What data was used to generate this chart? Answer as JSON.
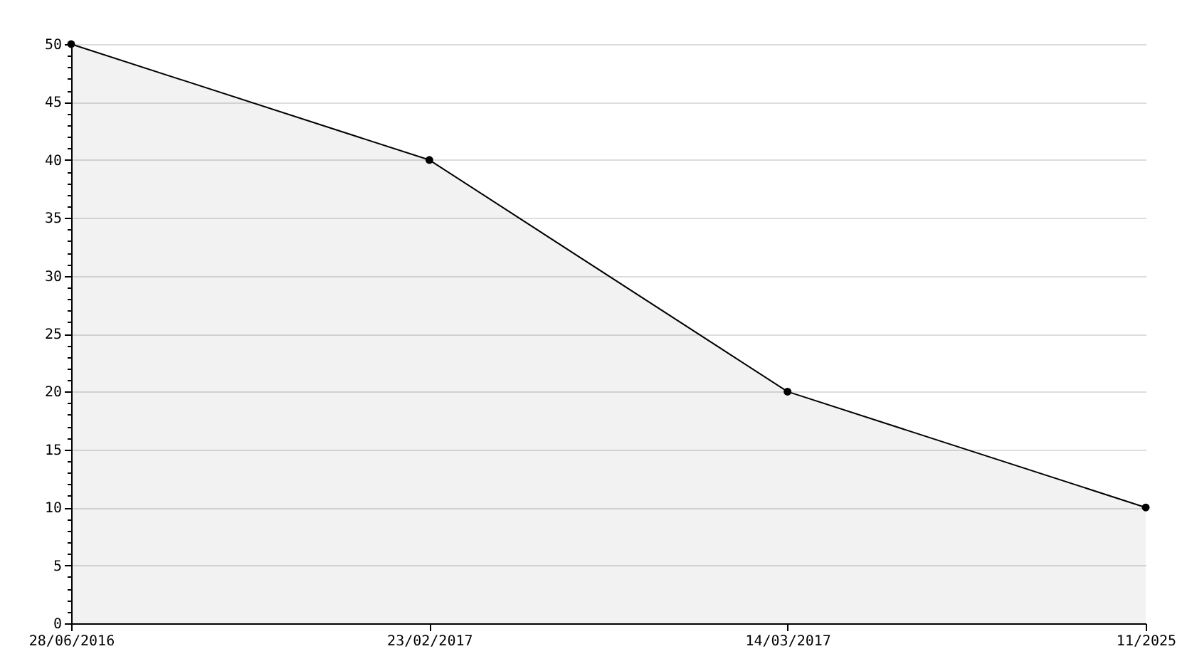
{
  "chart_data": {
    "type": "area",
    "categories": [
      "28/06/2016",
      "23/02/2017",
      "14/03/2017",
      "11/2025"
    ],
    "series": [
      {
        "color": "#000000",
        "values": [
          50,
          40,
          20,
          10
        ]
      }
    ],
    "ylim": [
      0,
      50
    ],
    "yticks": [
      0,
      {
        "value": 1,
        "label": null
      },
      {
        "value": 2,
        "label": null
      },
      {
        "value": 3,
        "label": null
      },
      {
        "value": 4,
        "label": null
      },
      5,
      {
        "value": 6,
        "label": null
      },
      {
        "value": 7,
        "label": null
      },
      {
        "value": 8,
        "label": null
      },
      {
        "value": 9,
        "label": null
      },
      10,
      {
        "value": 11,
        "label": null
      },
      {
        "value": 12,
        "label": null
      },
      {
        "value": 13,
        "label": null
      },
      {
        "value": 14,
        "label": null
      },
      15,
      {
        "value": 16,
        "label": null
      },
      {
        "value": 17,
        "label": null
      },
      {
        "value": 18,
        "label": null
      },
      {
        "value": 19,
        "label": null
      },
      20,
      {
        "value": 21,
        "label": null
      },
      {
        "value": 22,
        "label": null
      },
      {
        "value": 23,
        "label": null
      },
      {
        "value": 24,
        "label": null
      },
      25,
      {
        "value": 26,
        "label": null
      },
      {
        "value": 27,
        "label": null
      },
      {
        "value": 28,
        "label": null
      },
      {
        "value": 29,
        "label": null
      },
      30,
      {
        "value": 31,
        "label": null
      },
      {
        "value": 32,
        "label": null
      },
      {
        "value": 33,
        "label": null
      },
      {
        "value": 34,
        "label": null
      },
      35,
      {
        "value": 36,
        "label": null
      },
      {
        "value": 37,
        "label": null
      },
      {
        "value": 38,
        "label": null
      },
      {
        "value": 39,
        "label": null
      },
      40,
      {
        "value": 41,
        "label": null
      },
      {
        "value": 42,
        "label": null
      },
      {
        "value": 43,
        "label": null
      },
      {
        "value": 44,
        "label": null
      },
      45,
      {
        "value": 46,
        "label": null
      },
      {
        "value": 47,
        "label": null
      },
      {
        "value": 48,
        "label": null
      },
      {
        "value": 49,
        "label": null
      },
      50
    ],
    "grid": "y",
    "marker": "circle",
    "line_style": "solid"
  }
}
